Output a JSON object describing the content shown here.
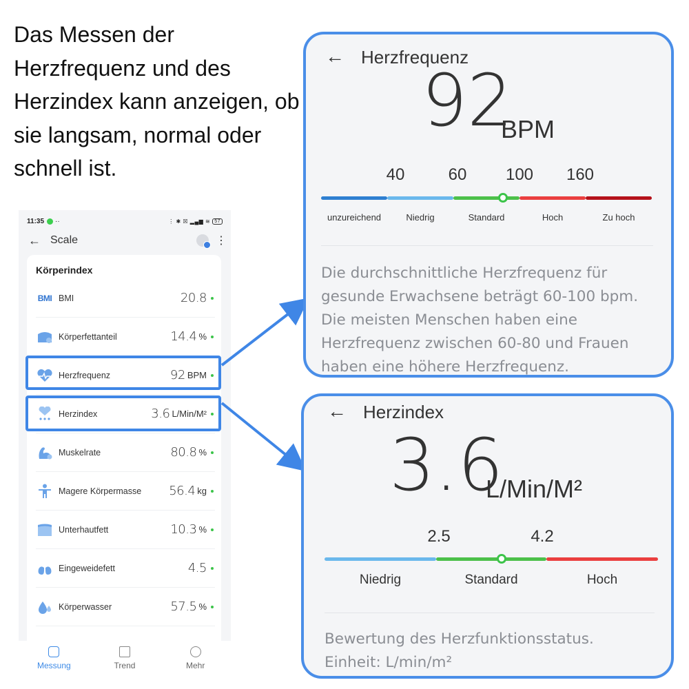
{
  "intro_text": "Das Messen der Herzfrequenz und des Herzindex kann anzeigen, ob sie langsam, normal oder schnell ist.",
  "status_bar": {
    "time": "11:35",
    "dots": "··",
    "icons": "⋮ ✱ ☒ ▂▄▆ ≋",
    "battery": "57"
  },
  "app": {
    "back_icon": "←",
    "title": "Scale",
    "more_icon": "⋮"
  },
  "body_index": {
    "heading": "Körperindex",
    "items": [
      {
        "icon": "bmi-text-icon",
        "badge": "BMI",
        "label": "BMI",
        "value": "20.8",
        "unit": ""
      },
      {
        "icon": "body-fat-icon",
        "label": "Körperfettanteil",
        "value": "14.4",
        "unit": "%"
      },
      {
        "icon": "heart-rate-icon",
        "label": "Herzfrequenz",
        "value": "92",
        "unit": "BPM"
      },
      {
        "icon": "heart-index-icon",
        "label": "Herzindex",
        "value": "3.6",
        "unit": "L/Min/M²"
      },
      {
        "icon": "muscle-icon",
        "label": "Muskelrate",
        "value": "80.8",
        "unit": "%"
      },
      {
        "icon": "lean-mass-icon",
        "label": "Magere Körpermasse",
        "value": "56.4",
        "unit": "kg"
      },
      {
        "icon": "subcutaneous-fat-icon",
        "label": "Unterhautfett",
        "value": "10.3",
        "unit": "%"
      },
      {
        "icon": "visceral-fat-icon",
        "label": "Eingeweidefett",
        "value": "4.5",
        "unit": ""
      },
      {
        "icon": "body-water-icon",
        "label": "Körperwasser",
        "value": "57.5",
        "unit": "%"
      }
    ]
  },
  "bottom_nav": [
    {
      "label": "Messung",
      "active": true
    },
    {
      "label": "Trend",
      "active": false
    },
    {
      "label": "Mehr",
      "active": false
    }
  ],
  "heart_rate_panel": {
    "back_icon": "←",
    "title": "Herzfrequenz",
    "value": "92",
    "unit": "BPM",
    "thresholds": [
      "40",
      "60",
      "100",
      "160"
    ],
    "segments": [
      "unzureichend",
      "Niedrig",
      "Standard",
      "Hoch",
      "Zu hoch"
    ],
    "segment_colors": [
      "#2e7fd1",
      "#6ab8ec",
      "#4cc04a",
      "#ea3f3f",
      "#b5121b"
    ],
    "marker_position": 0.55,
    "description": "Die durchschnittliche Herzfrequenz für gesunde Erwachsene beträgt 60-100 bpm. Die meisten Menschen haben eine Herzfrequenz zwischen 60-80 und Frauen haben eine höhere Herzfrequenz."
  },
  "heart_index_panel": {
    "back_icon": "←",
    "title": "Herzindex",
    "value": "3.6",
    "unit": "L/Min/M²",
    "thresholds": [
      "2.5",
      "4.2"
    ],
    "segments": [
      "Niedrig",
      "Standard",
      "Hoch"
    ],
    "segment_colors": [
      "#6ab8ec",
      "#4cc04a",
      "#ea3f3f"
    ],
    "marker_position": 0.53,
    "description_line1": "Bewertung des Herzfunktionsstatus.",
    "description_line2": "Einheit: L/min/m²"
  },
  "colors": {
    "accent": "#3f86e6",
    "status_ok": "#3cc44a"
  }
}
